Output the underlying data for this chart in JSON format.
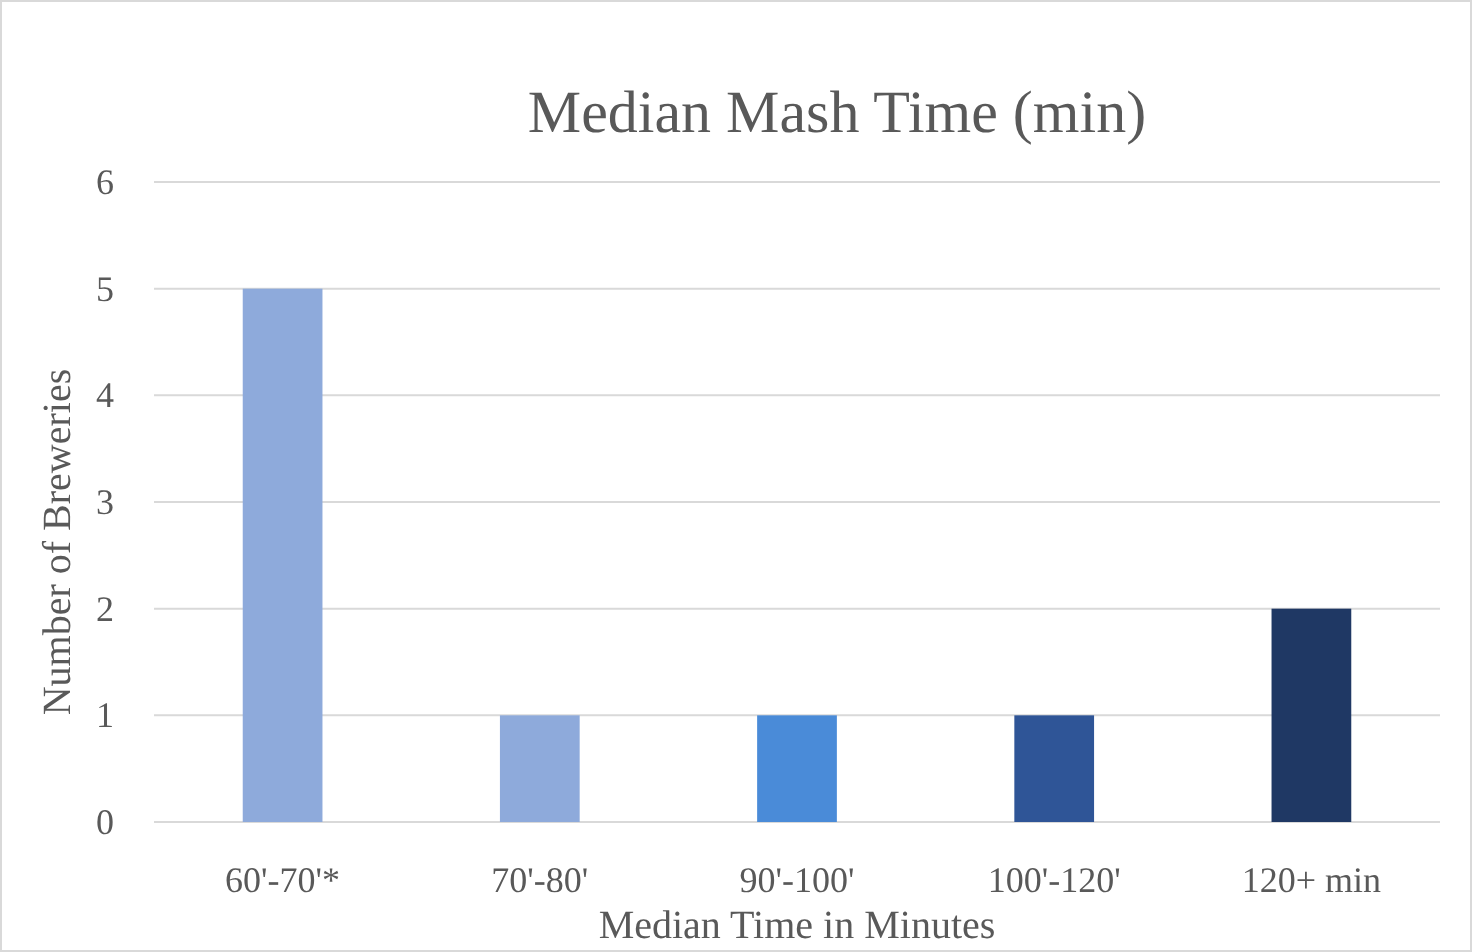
{
  "chart_data": {
    "type": "bar",
    "title": "Median Mash Time (min)",
    "xlabel": "Median Time in Minutes",
    "ylabel": "Number of Breweries",
    "categories": [
      "60'-70'*",
      "70'-80'",
      "90'-100'",
      "100'-120'",
      "120+ min"
    ],
    "values": [
      5,
      1,
      1,
      1,
      2
    ],
    "colors": [
      "#8eaadb",
      "#8eaadb",
      "#4a8bd8",
      "#2f5597",
      "#1f3864"
    ],
    "ylim": [
      0,
      6
    ],
    "yticks": [
      0,
      1,
      2,
      3,
      4,
      5,
      6
    ],
    "grid": "y"
  }
}
